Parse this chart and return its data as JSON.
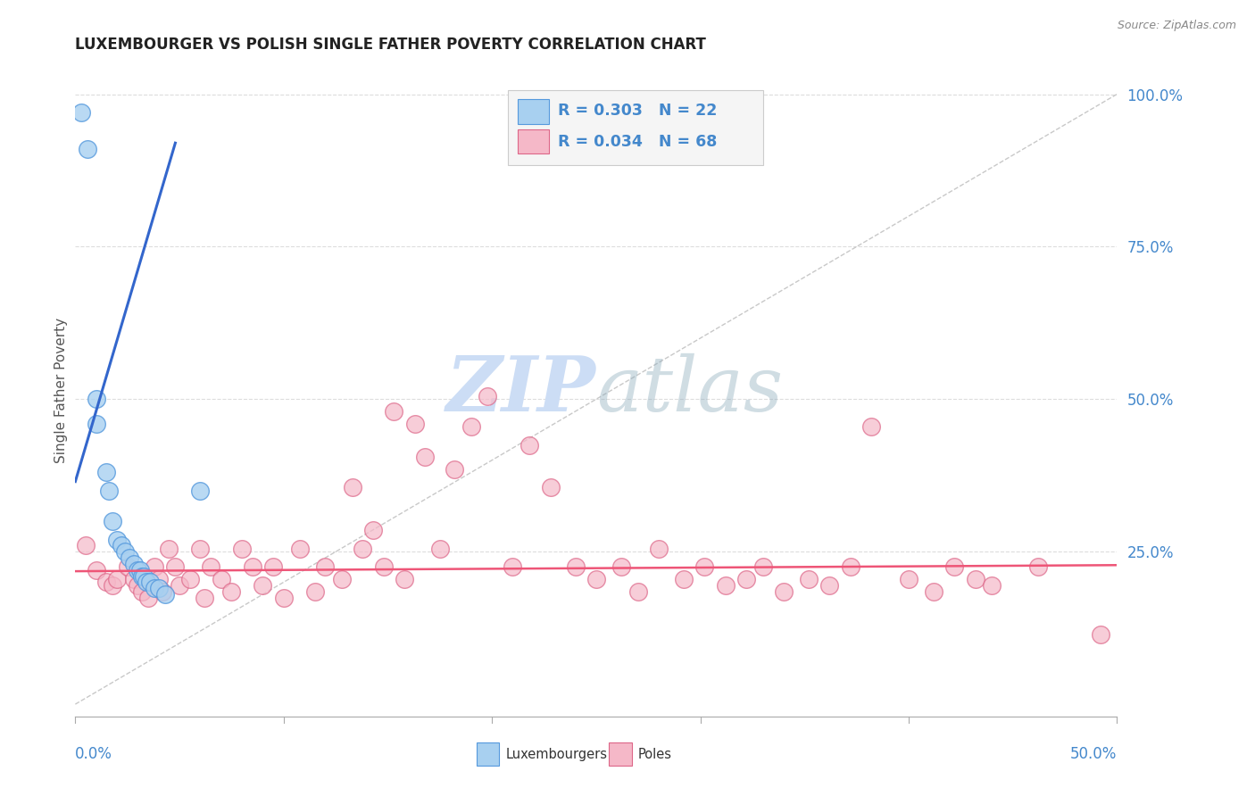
{
  "title": "LUXEMBOURGER VS POLISH SINGLE FATHER POVERTY CORRELATION CHART",
  "source": "Source: ZipAtlas.com",
  "ylabel": "Single Father Poverty",
  "xlim": [
    0.0,
    0.5
  ],
  "ylim": [
    -0.02,
    1.05
  ],
  "ytick_vals": [
    0.25,
    0.5,
    0.75,
    1.0
  ],
  "ytick_labels": [
    "25.0%",
    "50.0%",
    "75.0%",
    "100.0%"
  ],
  "legend_blue_text": "R = 0.303   N = 22",
  "legend_pink_text": "R = 0.034   N = 68",
  "legend_label_blue": "Luxembourgers",
  "legend_label_pink": "Poles",
  "blue_fill": "#A8D0F0",
  "blue_edge": "#5599DD",
  "pink_fill": "#F5B8C8",
  "pink_edge": "#DD6688",
  "blue_line_color": "#3366CC",
  "pink_line_color": "#EE5577",
  "dash_color": "#BBBBBB",
  "grid_color": "#DDDDDD",
  "text_color": "#4488CC",
  "watermark_color": "#CCDDF5",
  "blue_scatter_x": [
    0.003,
    0.006,
    0.01,
    0.01,
    0.015,
    0.016,
    0.018,
    0.02,
    0.022,
    0.024,
    0.026,
    0.028,
    0.03,
    0.031,
    0.032,
    0.033,
    0.034,
    0.036,
    0.038,
    0.04,
    0.043,
    0.06
  ],
  "blue_scatter_y": [
    0.97,
    0.91,
    0.5,
    0.46,
    0.38,
    0.35,
    0.3,
    0.27,
    0.26,
    0.25,
    0.24,
    0.23,
    0.22,
    0.22,
    0.21,
    0.21,
    0.2,
    0.2,
    0.19,
    0.19,
    0.18,
    0.35
  ],
  "pink_scatter_x": [
    0.005,
    0.01,
    0.015,
    0.018,
    0.02,
    0.025,
    0.028,
    0.03,
    0.032,
    0.035,
    0.038,
    0.04,
    0.042,
    0.045,
    0.048,
    0.05,
    0.055,
    0.06,
    0.062,
    0.065,
    0.07,
    0.075,
    0.08,
    0.085,
    0.09,
    0.095,
    0.1,
    0.108,
    0.115,
    0.12,
    0.128,
    0.133,
    0.138,
    0.143,
    0.148,
    0.153,
    0.158,
    0.163,
    0.168,
    0.175,
    0.182,
    0.19,
    0.198,
    0.21,
    0.218,
    0.228,
    0.24,
    0.25,
    0.262,
    0.27,
    0.28,
    0.292,
    0.302,
    0.312,
    0.322,
    0.33,
    0.34,
    0.352,
    0.362,
    0.372,
    0.382,
    0.4,
    0.412,
    0.422,
    0.432,
    0.44,
    0.462,
    0.492
  ],
  "pink_scatter_y": [
    0.26,
    0.22,
    0.2,
    0.195,
    0.205,
    0.225,
    0.205,
    0.195,
    0.185,
    0.175,
    0.225,
    0.205,
    0.185,
    0.255,
    0.225,
    0.195,
    0.205,
    0.255,
    0.175,
    0.225,
    0.205,
    0.185,
    0.255,
    0.225,
    0.195,
    0.225,
    0.175,
    0.255,
    0.185,
    0.225,
    0.205,
    0.355,
    0.255,
    0.285,
    0.225,
    0.48,
    0.205,
    0.46,
    0.405,
    0.255,
    0.385,
    0.455,
    0.505,
    0.225,
    0.425,
    0.355,
    0.225,
    0.205,
    0.225,
    0.185,
    0.255,
    0.205,
    0.225,
    0.195,
    0.205,
    0.225,
    0.185,
    0.205,
    0.195,
    0.225,
    0.455,
    0.205,
    0.185,
    0.225,
    0.205,
    0.195,
    0.225,
    0.115
  ],
  "blue_line_x": [
    0.0,
    0.048
  ],
  "blue_line_y": [
    0.365,
    0.92
  ],
  "pink_line_x": [
    0.0,
    0.5
  ],
  "pink_line_y": [
    0.218,
    0.228
  ],
  "dash_line_x": [
    0.0,
    0.5
  ],
  "dash_line_y": [
    0.0,
    1.0
  ]
}
